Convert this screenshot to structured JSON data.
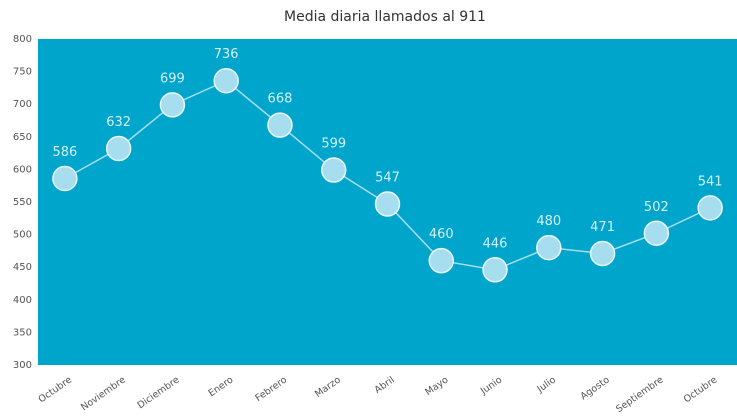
{
  "chart_data": {
    "type": "line",
    "title": "Media diaria llamados al 911",
    "categories": [
      "Octubre",
      "Noviembre",
      "Diciembre",
      "Enero",
      "Febrero",
      "Marzo",
      "Abril",
      "Mayo",
      "Junio",
      "Julio",
      "Agosto",
      "Septiembre",
      "Octubre"
    ],
    "values": [
      586,
      632,
      699,
      736,
      668,
      599,
      547,
      460,
      446,
      480,
      471,
      502,
      541
    ],
    "color": "#a6def0",
    "background": "#00a5cb",
    "ylim": [
      300,
      800
    ],
    "yticks": [
      300,
      350,
      400,
      450,
      500,
      550,
      600,
      650,
      700,
      750,
      800
    ],
    "grid": false
  }
}
